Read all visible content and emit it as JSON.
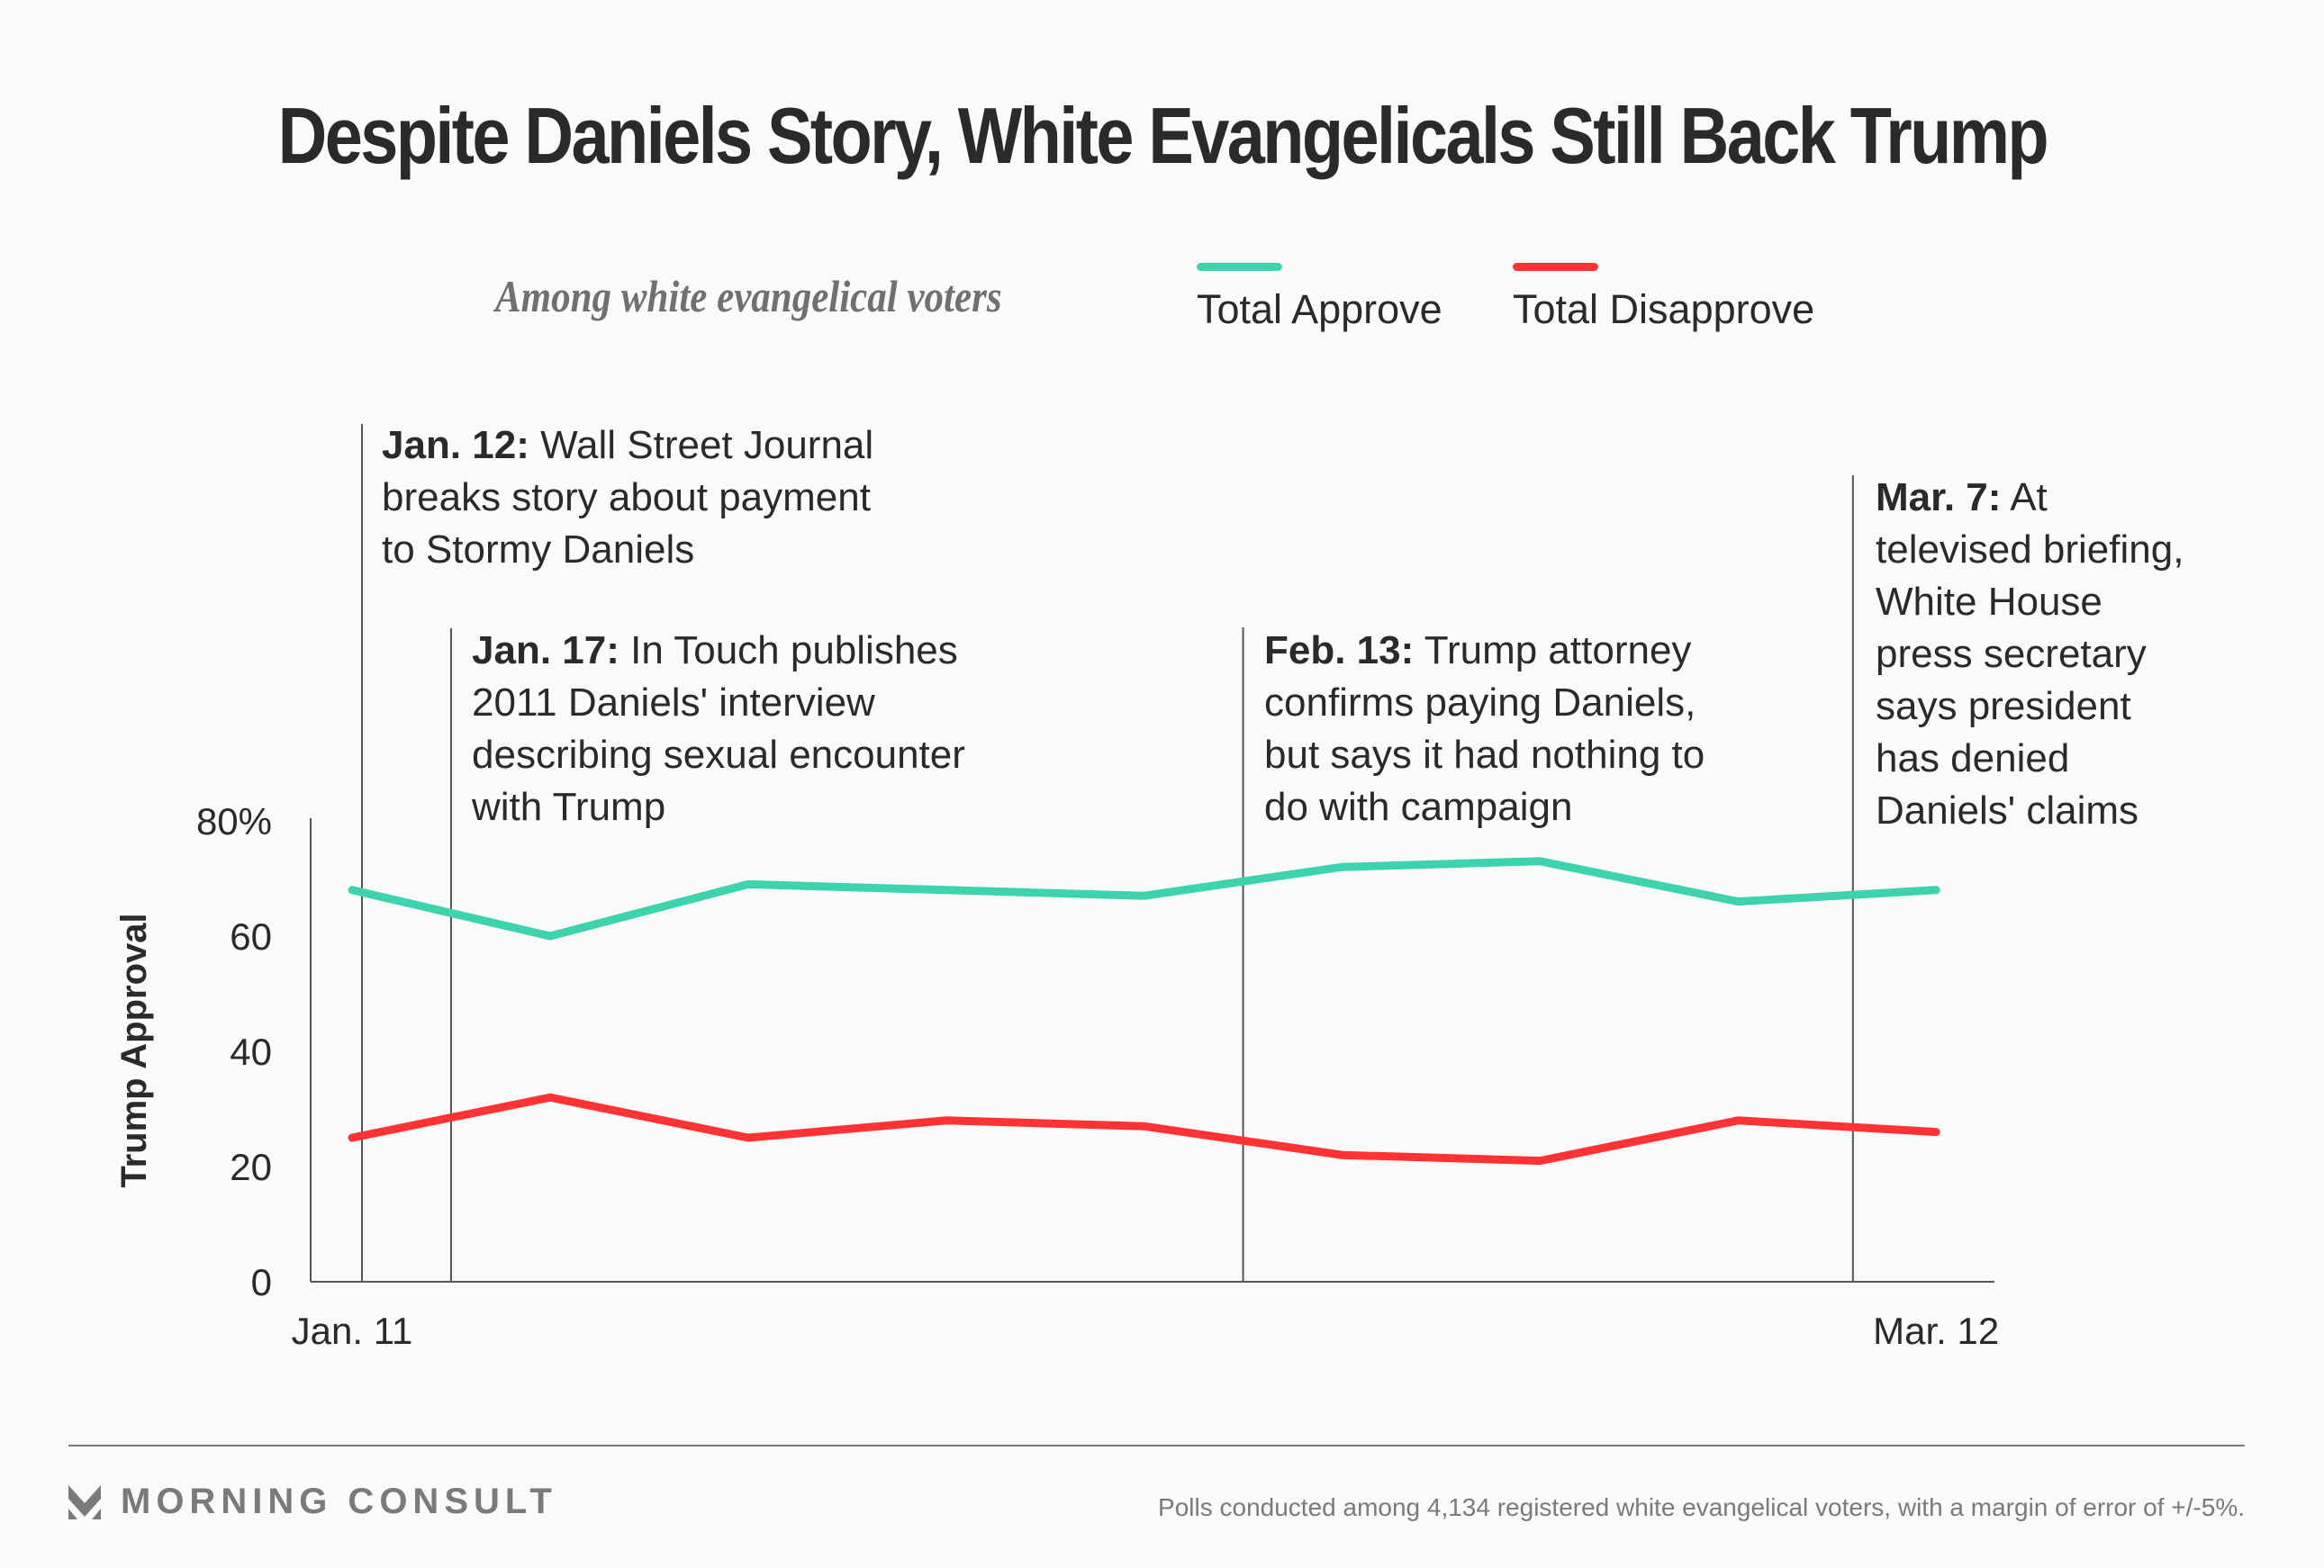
{
  "title": "Despite Daniels Story, White Evangelicals Still Back Trump",
  "subtitle": "Among white evangelical voters",
  "legend": [
    {
      "label": "Total Approve",
      "color": "#3dd3ae"
    },
    {
      "label": "Total Disapprove",
      "color": "#ff3333"
    }
  ],
  "annotations": [
    {
      "date": "Jan. 12:",
      "text": " Wall Street Journal breaks story about payment to Stormy Daniels",
      "lines": [
        "breaks story about payment",
        "to Stormy Daniels"
      ],
      "first": " Wall Street Journal",
      "position_index": 0.05
    },
    {
      "date": "Jan. 17:",
      "first": " In Touch publishes",
      "lines": [
        "2011 Daniels' interview",
        "describing sexual encounter",
        "with Trump"
      ],
      "position_index": 0.5
    },
    {
      "date": "Feb. 13:",
      "first": " Trump attorney",
      "lines": [
        "confirms paying Daniels,",
        "but says it had nothing to",
        "do with campaign"
      ],
      "position_index": 4.5
    },
    {
      "date": "Mar. 7:",
      "first": " At",
      "lines": [
        "televised briefing,",
        "White House",
        "press secretary",
        "says president",
        "has denied",
        "Daniels' claims"
      ],
      "position_index": 7.58
    }
  ],
  "chart_data": {
    "type": "line",
    "title": "Despite Daniels Story, White Evangelicals Still Back Trump",
    "subtitle": "Among white evangelical voters",
    "xlabel": "",
    "ylabel": "Trump Approval",
    "x_tick_labels": [
      {
        "index": 0,
        "label": "Jan. 11"
      },
      {
        "index": 8,
        "label": "Mar. 12"
      }
    ],
    "x": [
      0,
      1,
      2,
      3,
      4,
      5,
      6,
      7,
      8
    ],
    "y_ticks": [
      0,
      20,
      40,
      60,
      80
    ],
    "y_tick_labels": [
      "0",
      "20",
      "40",
      "60",
      "80%"
    ],
    "ylim": [
      0,
      80
    ],
    "grid": false,
    "legend_position": "top",
    "series": [
      {
        "name": "Total Approve",
        "color": "#3dd3ae",
        "values": [
          68,
          60,
          69,
          68,
          67,
          72,
          73,
          66,
          68
        ]
      },
      {
        "name": "Total Disapprove",
        "color": "#ff3333",
        "values": [
          25,
          32,
          25,
          28,
          27,
          22,
          21,
          28,
          26
        ]
      }
    ]
  },
  "footer": {
    "brand": "MORNING CONSULT",
    "note": "Polls conducted among 4,134 registered white evangelical voters, with a margin of error of +/-5%."
  }
}
